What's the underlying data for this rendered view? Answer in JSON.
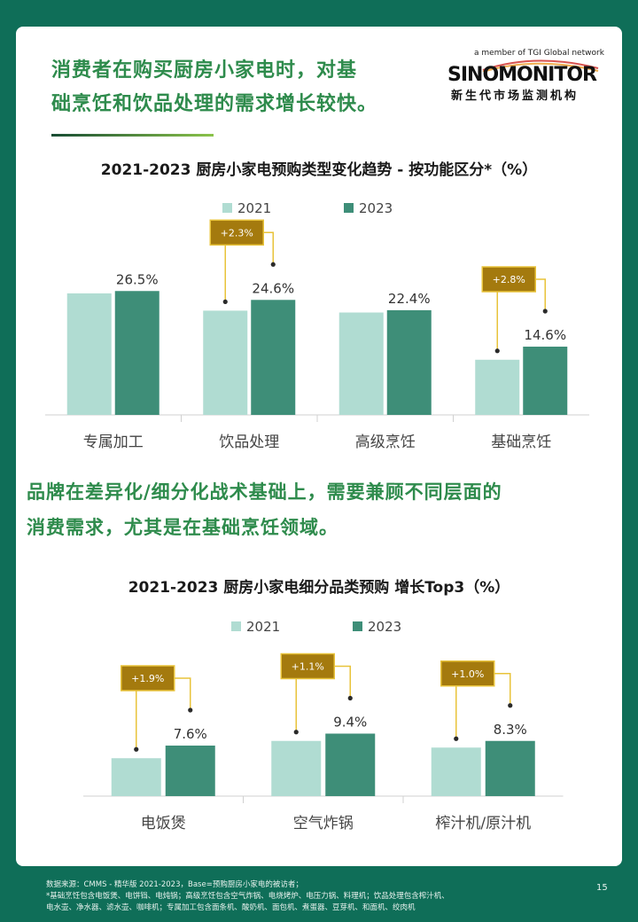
{
  "header": {
    "headline_line1": "消费者在购买厨房小家电时，对基",
    "headline_line2": "础烹饪和饮品处理的需求增长较快。"
  },
  "logo": {
    "tagline": "a member of TGI Global network",
    "name": "SINOMONITOR",
    "chinese": "新生代市场监测机构"
  },
  "mid": {
    "headline_line1": "品牌在差异化/细分化战术基础上，需要兼顾不同层面的",
    "headline_line2": "消费需求，尤其是在基础烹饪领域。"
  },
  "colors": {
    "series_2021": "#b0dcd2",
    "series_2023": "#3e8e78",
    "callout_fill": "#a47a0e",
    "callout_border": "#e8c33a",
    "background": "#0f6e58",
    "headline": "#2e8b4c"
  },
  "chart_data": [
    {
      "type": "bar",
      "title": "2021-2023 厨房小家电预购类型变化趋势 - 按功能区分*（%）",
      "categories": [
        "专属加工",
        "饮品处理",
        "高级烹饪",
        "基础烹饪"
      ],
      "series": [
        {
          "name": "2021",
          "values": [
            26.0,
            22.3,
            21.9,
            11.8
          ]
        },
        {
          "name": "2023",
          "values": [
            26.5,
            24.6,
            22.4,
            14.6
          ]
        }
      ],
      "value_labels_2023": [
        "26.5%",
        "24.6%",
        "22.4%",
        "14.6%"
      ],
      "annotations": [
        {
          "category_index": 1,
          "text": "+2.3%"
        },
        {
          "category_index": 3,
          "text": "+2.8%"
        }
      ],
      "ylim": [
        0,
        30
      ],
      "legend": "top-center",
      "grid": false
    },
    {
      "type": "bar",
      "title": "2021-2023 厨房小家电细分品类预购  增长Top3（%）",
      "categories": [
        "电饭煲",
        "空气炸锅",
        "榨汁机/原汁机"
      ],
      "series": [
        {
          "name": "2021",
          "values": [
            5.7,
            8.3,
            7.3
          ]
        },
        {
          "name": "2023",
          "values": [
            7.6,
            9.4,
            8.3
          ]
        }
      ],
      "value_labels_2023": [
        "7.6%",
        "9.4%",
        "8.3%"
      ],
      "annotations": [
        {
          "category_index": 0,
          "text": "+1.9%"
        },
        {
          "category_index": 1,
          "text": "+1.1%"
        },
        {
          "category_index": 2,
          "text": "+1.0%"
        }
      ],
      "ylim": [
        0,
        10
      ],
      "legend": "top-center",
      "grid": false
    }
  ],
  "footer": {
    "line1": "数据来源：CMMS - 精华版 2021-2023，Base=预购厨房小家电的被访者；",
    "line2": "*基础烹饪包含电饭煲、电饼铛、电炖锅；高级烹饪包含空气炸锅、电烧烤炉、电压力锅、料理机；饮品处理包含榨汁机、",
    "line3": "电水壶、净水器、滤水壶、咖啡机；专属加工包含面条机、酸奶机、面包机、煮蛋器、豆芽机、和面机、绞肉机",
    "page": "15"
  }
}
